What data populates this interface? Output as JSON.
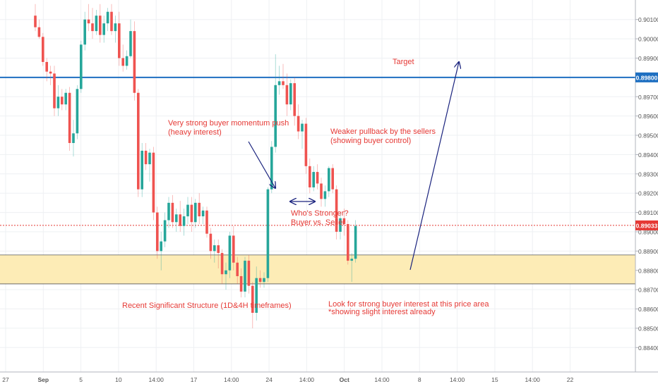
{
  "chart_data": {
    "type": "candlestick",
    "title": "",
    "xlabel": "",
    "ylabel": "",
    "ylim": [
      0.8835,
      0.9015
    ],
    "x_ticks": [
      "27",
      "Sep",
      "5",
      "10",
      "14:00",
      "17",
      "14:00",
      "24",
      "14:00",
      "Oct",
      "14:00",
      "8",
      "14:00",
      "15",
      "14:00",
      "22"
    ],
    "y_ticks": [
      "0.90100",
      "0.90000",
      "0.89900",
      "0.89800",
      "0.89700",
      "0.89600",
      "0.89500",
      "0.89400",
      "0.89300",
      "0.89200",
      "0.89100",
      "0.89000",
      "0.88900",
      "0.88800",
      "0.88700",
      "0.88600",
      "0.88500",
      "0.88400"
    ],
    "candles": [
      {
        "o": 0.9012,
        "h": 0.9018,
        "l": 0.9004,
        "c": 0.9006
      },
      {
        "o": 0.9006,
        "h": 0.901,
        "l": 0.9,
        "c": 0.9001
      },
      {
        "o": 0.9001,
        "h": 0.9003,
        "l": 0.8986,
        "c": 0.8988
      },
      {
        "o": 0.8988,
        "h": 0.899,
        "l": 0.8978,
        "c": 0.8983
      },
      {
        "o": 0.8983,
        "h": 0.8986,
        "l": 0.8976,
        "c": 0.8982
      },
      {
        "o": 0.8982,
        "h": 0.8986,
        "l": 0.896,
        "c": 0.8964
      },
      {
        "o": 0.8964,
        "h": 0.8976,
        "l": 0.896,
        "c": 0.897
      },
      {
        "o": 0.897,
        "h": 0.8974,
        "l": 0.8963,
        "c": 0.8966
      },
      {
        "o": 0.8966,
        "h": 0.8974,
        "l": 0.8963,
        "c": 0.8972
      },
      {
        "o": 0.8972,
        "h": 0.8975,
        "l": 0.8942,
        "c": 0.8946
      },
      {
        "o": 0.8946,
        "h": 0.8958,
        "l": 0.8939,
        "c": 0.8951
      },
      {
        "o": 0.8951,
        "h": 0.8976,
        "l": 0.8948,
        "c": 0.8974
      },
      {
        "o": 0.8974,
        "h": 0.8999,
        "l": 0.8972,
        "c": 0.8997
      },
      {
        "o": 0.8997,
        "h": 0.9014,
        "l": 0.8994,
        "c": 0.901
      },
      {
        "o": 0.901,
        "h": 0.9018,
        "l": 0.9004,
        "c": 0.9008
      },
      {
        "o": 0.9008,
        "h": 0.9016,
        "l": 0.9,
        "c": 0.9004
      },
      {
        "o": 0.9004,
        "h": 0.9015,
        "l": 0.9002,
        "c": 0.9012
      },
      {
        "o": 0.9012,
        "h": 0.9018,
        "l": 0.8998,
        "c": 0.9002
      },
      {
        "o": 0.9002,
        "h": 0.9012,
        "l": 0.8998,
        "c": 0.9008
      },
      {
        "o": 0.9008,
        "h": 0.9016,
        "l": 0.9004,
        "c": 0.9014
      },
      {
        "o": 0.9014,
        "h": 0.9018,
        "l": 0.9002,
        "c": 0.9004
      },
      {
        "o": 0.9004,
        "h": 0.9012,
        "l": 0.8998,
        "c": 0.9008
      },
      {
        "o": 0.9008,
        "h": 0.9014,
        "l": 0.8986,
        "c": 0.899
      },
      {
        "o": 0.899,
        "h": 0.8997,
        "l": 0.8983,
        "c": 0.8986
      },
      {
        "o": 0.8986,
        "h": 0.8994,
        "l": 0.8984,
        "c": 0.8991
      },
      {
        "o": 0.8991,
        "h": 0.901,
        "l": 0.899,
        "c": 0.9004
      },
      {
        "o": 0.9004,
        "h": 0.9009,
        "l": 0.8968,
        "c": 0.8972
      },
      {
        "o": 0.8972,
        "h": 0.8974,
        "l": 0.8918,
        "c": 0.8922
      },
      {
        "o": 0.8922,
        "h": 0.8946,
        "l": 0.8918,
        "c": 0.8942
      },
      {
        "o": 0.8942,
        "h": 0.8946,
        "l": 0.8932,
        "c": 0.8935
      },
      {
        "o": 0.8935,
        "h": 0.8943,
        "l": 0.8926,
        "c": 0.8941
      },
      {
        "o": 0.8941,
        "h": 0.8944,
        "l": 0.8906,
        "c": 0.891
      },
      {
        "o": 0.891,
        "h": 0.8913,
        "l": 0.8886,
        "c": 0.889
      },
      {
        "o": 0.889,
        "h": 0.89,
        "l": 0.888,
        "c": 0.8895
      },
      {
        "o": 0.8895,
        "h": 0.891,
        "l": 0.8892,
        "c": 0.8906
      },
      {
        "o": 0.8906,
        "h": 0.8918,
        "l": 0.8902,
        "c": 0.8915
      },
      {
        "o": 0.8915,
        "h": 0.8919,
        "l": 0.8902,
        "c": 0.8905
      },
      {
        "o": 0.8905,
        "h": 0.8912,
        "l": 0.89,
        "c": 0.8909
      },
      {
        "o": 0.8909,
        "h": 0.8916,
        "l": 0.89,
        "c": 0.8903
      },
      {
        "o": 0.8903,
        "h": 0.8912,
        "l": 0.8898,
        "c": 0.8908
      },
      {
        "o": 0.8908,
        "h": 0.8918,
        "l": 0.8904,
        "c": 0.8914
      },
      {
        "o": 0.8914,
        "h": 0.8918,
        "l": 0.89,
        "c": 0.8905
      },
      {
        "o": 0.8905,
        "h": 0.8917,
        "l": 0.8902,
        "c": 0.8915
      },
      {
        "o": 0.8915,
        "h": 0.892,
        "l": 0.8904,
        "c": 0.8908
      },
      {
        "o": 0.8908,
        "h": 0.8913,
        "l": 0.8904,
        "c": 0.8911
      },
      {
        "o": 0.8911,
        "h": 0.8913,
        "l": 0.8897,
        "c": 0.8899
      },
      {
        "o": 0.8899,
        "h": 0.8902,
        "l": 0.8886,
        "c": 0.889
      },
      {
        "o": 0.889,
        "h": 0.8896,
        "l": 0.8884,
        "c": 0.8893
      },
      {
        "o": 0.8893,
        "h": 0.8896,
        "l": 0.8881,
        "c": 0.8889
      },
      {
        "o": 0.8889,
        "h": 0.8891,
        "l": 0.8873,
        "c": 0.8878
      },
      {
        "o": 0.8878,
        "h": 0.8884,
        "l": 0.887,
        "c": 0.888
      },
      {
        "o": 0.888,
        "h": 0.89,
        "l": 0.8876,
        "c": 0.8898
      },
      {
        "o": 0.8898,
        "h": 0.8903,
        "l": 0.888,
        "c": 0.8884
      },
      {
        "o": 0.8884,
        "h": 0.8887,
        "l": 0.8873,
        "c": 0.8877
      },
      {
        "o": 0.8877,
        "h": 0.8881,
        "l": 0.8866,
        "c": 0.8869
      },
      {
        "o": 0.8869,
        "h": 0.8887,
        "l": 0.8866,
        "c": 0.8885
      },
      {
        "o": 0.8885,
        "h": 0.8888,
        "l": 0.8868,
        "c": 0.8872
      },
      {
        "o": 0.8872,
        "h": 0.8874,
        "l": 0.885,
        "c": 0.8858
      },
      {
        "o": 0.8858,
        "h": 0.8882,
        "l": 0.8854,
        "c": 0.8876
      },
      {
        "o": 0.8876,
        "h": 0.888,
        "l": 0.8871,
        "c": 0.8874
      },
      {
        "o": 0.8874,
        "h": 0.8879,
        "l": 0.8871,
        "c": 0.8876
      },
      {
        "o": 0.8876,
        "h": 0.8923,
        "l": 0.8874,
        "c": 0.8922
      },
      {
        "o": 0.8922,
        "h": 0.8947,
        "l": 0.892,
        "c": 0.8944
      },
      {
        "o": 0.8944,
        "h": 0.8992,
        "l": 0.8941,
        "c": 0.8976
      },
      {
        "o": 0.8976,
        "h": 0.8986,
        "l": 0.8971,
        "c": 0.8978
      },
      {
        "o": 0.8978,
        "h": 0.8987,
        "l": 0.8974,
        "c": 0.8976
      },
      {
        "o": 0.8976,
        "h": 0.8982,
        "l": 0.896,
        "c": 0.8966
      },
      {
        "o": 0.8966,
        "h": 0.8979,
        "l": 0.8963,
        "c": 0.8977
      },
      {
        "o": 0.8977,
        "h": 0.898,
        "l": 0.8955,
        "c": 0.896
      },
      {
        "o": 0.896,
        "h": 0.8966,
        "l": 0.8948,
        "c": 0.8952
      },
      {
        "o": 0.8952,
        "h": 0.8958,
        "l": 0.8943,
        "c": 0.8956
      },
      {
        "o": 0.8956,
        "h": 0.8959,
        "l": 0.893,
        "c": 0.8934
      },
      {
        "o": 0.8934,
        "h": 0.8938,
        "l": 0.892,
        "c": 0.8923
      },
      {
        "o": 0.8923,
        "h": 0.8934,
        "l": 0.8921,
        "c": 0.8931
      },
      {
        "o": 0.8931,
        "h": 0.8935,
        "l": 0.8922,
        "c": 0.8925
      },
      {
        "o": 0.8925,
        "h": 0.8928,
        "l": 0.8913,
        "c": 0.8917
      },
      {
        "o": 0.8917,
        "h": 0.8924,
        "l": 0.8913,
        "c": 0.8921
      },
      {
        "o": 0.8921,
        "h": 0.8934,
        "l": 0.8918,
        "c": 0.8933
      },
      {
        "o": 0.8933,
        "h": 0.8935,
        "l": 0.892,
        "c": 0.8922
      },
      {
        "o": 0.8922,
        "h": 0.8924,
        "l": 0.8896,
        "c": 0.89
      },
      {
        "o": 0.89,
        "h": 0.891,
        "l": 0.8896,
        "c": 0.8907
      },
      {
        "o": 0.8907,
        "h": 0.8912,
        "l": 0.8898,
        "c": 0.8904
      },
      {
        "o": 0.8904,
        "h": 0.8906,
        "l": 0.8883,
        "c": 0.8885
      },
      {
        "o": 0.8885,
        "h": 0.8889,
        "l": 0.8874,
        "c": 0.8886
      },
      {
        "o": 0.8886,
        "h": 0.8906,
        "l": 0.8884,
        "c": 0.8903
      }
    ],
    "horizontal_lines": [
      {
        "value": 0.898,
        "style": "solid",
        "color": "#1e6fc1",
        "label": "0.89800"
      },
      {
        "value": 0.89033,
        "style": "dotted",
        "color": "#e53935",
        "label": "0.89033"
      }
    ],
    "zones": [
      {
        "from": 0.8873,
        "to": 0.8888,
        "fill": "#fdecb6",
        "border": "#555555"
      }
    ],
    "annotations": [
      {
        "name": "target",
        "text": "Target"
      },
      {
        "name": "buyer-momentum",
        "text": "Very strong buyer momentum push\n(heavy interest)"
      },
      {
        "name": "weaker-pullback",
        "text": "Weaker pullback by the sellers\n(showing buyer control)"
      },
      {
        "name": "whos-stronger",
        "text": "Who's Stronger?\nBuyer vs. Seller"
      },
      {
        "name": "recent-structure",
        "text": "Recent Significant Structure (1D&4H timeframes)"
      },
      {
        "name": "look-for-interest",
        "text": "Look for strong buyer interest at this price area\n*showing slight interest already"
      }
    ],
    "colors": {
      "bull": "#26a69a",
      "bear": "#ef5350",
      "annotation_text": "#e53935",
      "arrow": "#1a237e",
      "grid": "#eef0f3",
      "axis_text": "#555555"
    },
    "grid": true
  }
}
